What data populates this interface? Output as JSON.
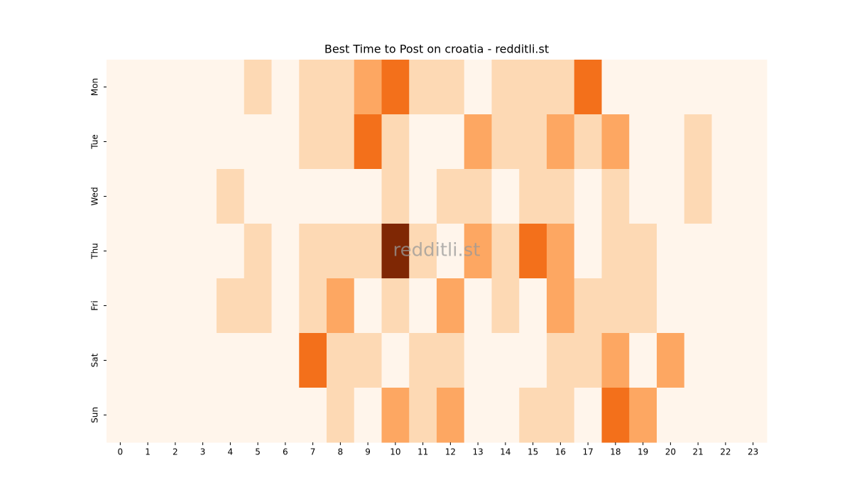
{
  "chart_data": {
    "type": "heatmap",
    "title": "Best Time to Post on croatia - redditli.st",
    "watermark": "redditli.st",
    "x": [
      0,
      1,
      2,
      3,
      4,
      5,
      6,
      7,
      8,
      9,
      10,
      11,
      12,
      13,
      14,
      15,
      16,
      17,
      18,
      19,
      20,
      21,
      22,
      23
    ],
    "y": [
      "Mon",
      "Tue",
      "Wed",
      "Thu",
      "Fri",
      "Sat",
      "Sun"
    ],
    "values": [
      [
        0,
        0,
        0,
        0,
        0,
        1,
        0,
        1,
        1,
        2,
        3,
        1,
        1,
        0,
        1,
        1,
        1,
        3,
        0,
        0,
        0,
        0,
        0,
        0
      ],
      [
        0,
        0,
        0,
        0,
        0,
        0,
        0,
        1,
        1,
        3,
        1,
        0,
        0,
        2,
        1,
        1,
        2,
        1,
        2,
        0,
        0,
        1,
        0,
        0
      ],
      [
        0,
        0,
        0,
        0,
        1,
        0,
        0,
        0,
        0,
        0,
        1,
        0,
        1,
        1,
        0,
        1,
        1,
        0,
        1,
        0,
        0,
        1,
        0,
        0
      ],
      [
        0,
        0,
        0,
        0,
        0,
        1,
        0,
        1,
        1,
        1,
        4,
        1,
        0,
        2,
        1,
        3,
        2,
        0,
        1,
        1,
        0,
        0,
        0,
        0
      ],
      [
        0,
        0,
        0,
        0,
        1,
        1,
        0,
        1,
        2,
        0,
        1,
        0,
        2,
        0,
        1,
        0,
        2,
        1,
        1,
        1,
        0,
        0,
        0,
        0
      ],
      [
        0,
        0,
        0,
        0,
        0,
        0,
        0,
        3,
        1,
        1,
        0,
        1,
        1,
        0,
        0,
        0,
        1,
        1,
        2,
        0,
        2,
        0,
        0,
        0
      ],
      [
        0,
        0,
        0,
        0,
        0,
        0,
        0,
        0,
        1,
        0,
        2,
        1,
        2,
        0,
        0,
        1,
        1,
        0,
        3,
        2,
        0,
        0,
        0,
        0
      ]
    ],
    "colors": [
      "#fff5eb",
      "#fdd9b4",
      "#fda762",
      "#f3701b",
      "#7f2704"
    ]
  }
}
